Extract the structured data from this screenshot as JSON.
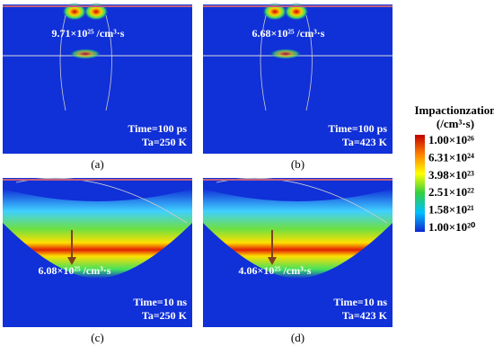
{
  "panels": [
    {
      "value_label": "9.71×10²⁵ /cm³·s",
      "time": "Time=100 ps",
      "ta": "Ta=250 K",
      "caption": "(a)"
    },
    {
      "value_label": "6.68×10²⁵ /cm³·s",
      "time": "Time=100 ps",
      "ta": "Ta=423 K",
      "caption": "(b)"
    },
    {
      "value_label": "6.08×10²⁵ /cm³·s",
      "time": "Time=10 ns",
      "ta": "Ta=250 K",
      "caption": "(c)"
    },
    {
      "value_label": "4.06×10²⁵ /cm³·s",
      "time": "Time=10 ns",
      "ta": "Ta=423 K",
      "caption": "(d)"
    }
  ],
  "colorbar": {
    "title": "Impactionzation",
    "unit": "(/cm³·s)",
    "labels": [
      "1.00×10²⁶",
      "6.31×10²⁴",
      "3.98×10²³",
      "2.51×10²²",
      "1.58×10²¹",
      "1.00×10²⁰"
    ]
  }
}
